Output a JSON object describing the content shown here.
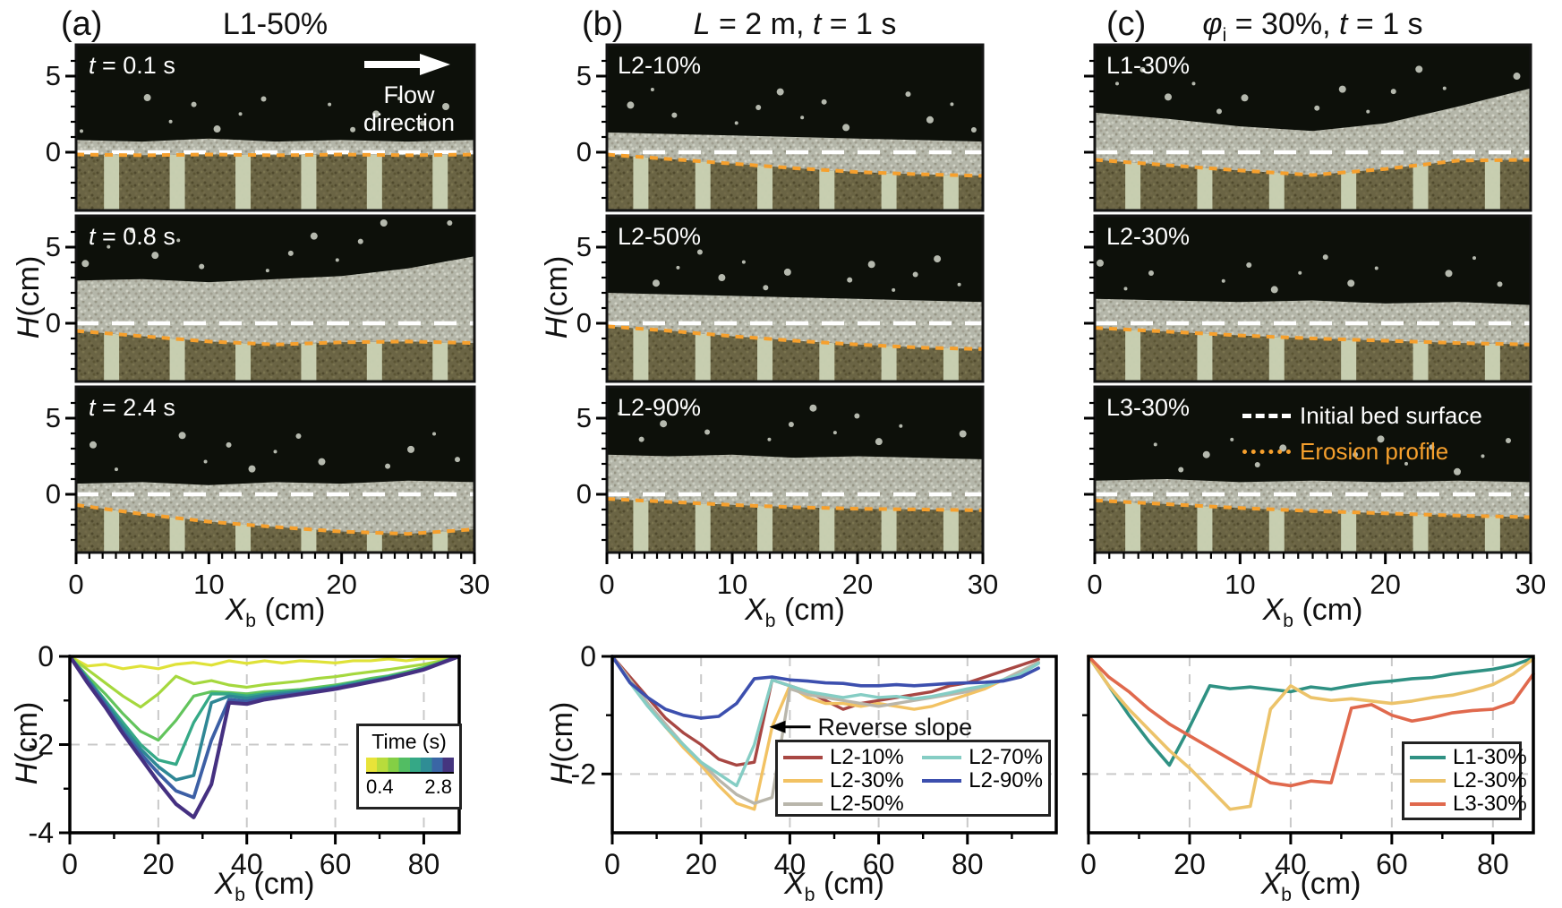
{
  "labels": {
    "x_base": "X",
    "x_sub": "b",
    "x_unit": " (cm)",
    "y_base": "H",
    "y_unit": " (cm)"
  },
  "headers": {
    "a": {
      "tag": "(a)",
      "title": "L1-50%"
    },
    "b": {
      "tag": "(b)",
      "l": "L",
      "mid": " = 2 m, ",
      "t": "t",
      "end": " = 1 s"
    },
    "c": {
      "tag": "(c)",
      "phi": "φ",
      "phi_sub": "i",
      "mid": " = 30%, ",
      "t": "t",
      "end": " = 1 s"
    }
  },
  "photo_panels": {
    "flow_direction_label": "Flow direction",
    "bed_legend": {
      "initial": "Initial bed surface",
      "erosion": "Erosion profile",
      "initial_color": "#ffffff",
      "erosion_color": "#f6a02d"
    },
    "xtick_labels": [
      "0",
      "10",
      "20",
      "30"
    ],
    "columns": [
      {
        "id": "a",
        "ytick_labels": [
          "5",
          "0"
        ],
        "panels": [
          {
            "label_i": "t",
            "label": " = 0.1 s",
            "surface": [
              0.8,
              0.7,
              0.9,
              0.7,
              0.8,
              0.7,
              0.8
            ],
            "erosion": [
              -0.15,
              -0.2,
              -0.15,
              -0.2,
              -0.15,
              -0.2,
              -0.15
            ]
          },
          {
            "label_i": "t",
            "label": " = 0.8 s",
            "surface": [
              2.8,
              2.9,
              2.7,
              2.9,
              3.1,
              3.6,
              4.4
            ],
            "erosion": [
              -0.5,
              -0.85,
              -1.2,
              -1.4,
              -1.25,
              -1.2,
              -1.3
            ]
          },
          {
            "label_i": "t",
            "label": " = 2.4 s",
            "surface": [
              0.7,
              0.8,
              0.6,
              0.8,
              0.7,
              0.9,
              0.8
            ],
            "erosion": [
              -0.7,
              -1.3,
              -1.8,
              -2.15,
              -2.45,
              -2.6,
              -2.3
            ]
          }
        ]
      },
      {
        "id": "b",
        "ytick_labels": [
          "5",
          "0"
        ],
        "panels": [
          {
            "label_i": "",
            "label": "L2-10%",
            "surface": [
              1.3,
              1.2,
              1.1,
              1.0,
              0.9,
              0.8,
              0.7
            ],
            "erosion": [
              -0.15,
              -0.45,
              -0.75,
              -1.05,
              -1.3,
              -1.45,
              -1.55
            ]
          },
          {
            "label_i": "",
            "label": "L2-50%",
            "surface": [
              2.0,
              1.9,
              1.8,
              1.7,
              1.6,
              1.5,
              1.4
            ],
            "erosion": [
              -0.2,
              -0.5,
              -0.85,
              -1.15,
              -1.4,
              -1.6,
              -1.7
            ]
          },
          {
            "label_i": "",
            "label": "L2-90%",
            "surface": [
              2.6,
              2.5,
              2.6,
              2.4,
              2.5,
              2.4,
              2.3
            ],
            "erosion": [
              -0.3,
              -0.5,
              -0.7,
              -0.85,
              -0.95,
              -1.0,
              -1.05
            ]
          }
        ]
      },
      {
        "id": "c",
        "ytick_labels": [],
        "panels": [
          {
            "label_i": "",
            "label": "L1-30%",
            "surface": [
              2.6,
              2.2,
              1.7,
              1.4,
              1.9,
              3.0,
              4.2
            ],
            "erosion": [
              -0.5,
              -0.85,
              -1.2,
              -1.5,
              -1.1,
              -0.55,
              -0.5
            ]
          },
          {
            "label_i": "",
            "label": "L2-30%",
            "surface": [
              1.6,
              1.5,
              1.4,
              1.5,
              1.3,
              1.4,
              1.2
            ],
            "erosion": [
              -0.3,
              -0.55,
              -0.8,
              -1.0,
              -1.15,
              -1.3,
              -1.4
            ]
          },
          {
            "label_i": "",
            "label": "L3-30%",
            "surface": [
              0.9,
              1.0,
              0.8,
              0.9,
              0.8,
              0.9,
              0.8
            ],
            "erosion": [
              -0.4,
              -0.65,
              -0.9,
              -1.1,
              -1.25,
              -1.4,
              -1.5
            ]
          }
        ]
      }
    ]
  },
  "chart_data": [
    {
      "type": "line",
      "xlabel": "X_b (cm)",
      "ylabel": "H (cm)",
      "xlim": [
        0,
        88
      ],
      "ylim": [
        -4,
        0
      ],
      "xticks": [
        0,
        20,
        40,
        60,
        80
      ],
      "xtick_labels": [
        "0",
        "20",
        "40",
        "60",
        "80"
      ],
      "yticks": [
        0,
        -2,
        -4
      ],
      "ytick_labels": [
        "0",
        "-2",
        "-4"
      ],
      "ytick_minor": [
        -1,
        -3
      ],
      "grid_x": [
        20,
        40,
        60,
        80
      ],
      "grid_y": [
        -2
      ],
      "legend": {
        "title": "Time (s)",
        "min": "0.4",
        "max": "2.8",
        "colorbar": [
          "#e8e339",
          "#b8dc3c",
          "#84cf45",
          "#52bd63",
          "#35a886",
          "#2f8d95",
          "#3a66a5",
          "#45357f"
        ]
      },
      "x": [
        0,
        4,
        8,
        12,
        16,
        20,
        24,
        28,
        32,
        36,
        40,
        44,
        48,
        52,
        56,
        60,
        64,
        68,
        72,
        76,
        80,
        84,
        88
      ],
      "series": [
        {
          "name": "t = 0.4 s",
          "color": "#dfe238",
          "width": 3.2,
          "y": [
            0,
            -0.22,
            -0.18,
            -0.28,
            -0.22,
            -0.28,
            -0.18,
            -0.14,
            -0.2,
            -0.1,
            -0.16,
            -0.1,
            -0.15,
            -0.1,
            -0.12,
            -0.15,
            -0.1,
            -0.1,
            -0.06,
            -0.1,
            -0.05,
            -0.05,
            0
          ]
        },
        {
          "name": "t = 0.8 s",
          "color": "#a5d83e",
          "width": 3.2,
          "y": [
            0,
            -0.3,
            -0.6,
            -0.9,
            -1.15,
            -0.85,
            -0.45,
            -0.62,
            -0.55,
            -0.65,
            -0.7,
            -0.64,
            -0.6,
            -0.56,
            -0.5,
            -0.46,
            -0.4,
            -0.35,
            -0.3,
            -0.24,
            -0.18,
            -0.1,
            0
          ]
        },
        {
          "name": "t = 1.2 s",
          "color": "#62c45c",
          "width": 3.2,
          "y": [
            0,
            -0.45,
            -0.85,
            -1.3,
            -1.7,
            -1.9,
            -1.45,
            -0.9,
            -0.8,
            -0.82,
            -0.85,
            -0.8,
            -0.78,
            -0.75,
            -0.7,
            -0.65,
            -0.58,
            -0.5,
            -0.44,
            -0.35,
            -0.25,
            -0.12,
            0
          ]
        },
        {
          "name": "t = 1.6 s",
          "color": "#35a987",
          "width": 3.4,
          "y": [
            0,
            -0.5,
            -1.0,
            -1.5,
            -2.0,
            -2.35,
            -2.45,
            -1.5,
            -0.85,
            -0.85,
            -0.9,
            -0.85,
            -0.8,
            -0.78,
            -0.74,
            -0.68,
            -0.6,
            -0.54,
            -0.46,
            -0.38,
            -0.28,
            -0.14,
            0
          ]
        },
        {
          "name": "t = 2.0 s",
          "color": "#2f8795",
          "width": 3.6,
          "y": [
            0,
            -0.52,
            -1.05,
            -1.6,
            -2.1,
            -2.5,
            -2.8,
            -2.7,
            -1.05,
            -0.9,
            -0.95,
            -0.88,
            -0.84,
            -0.8,
            -0.76,
            -0.7,
            -0.63,
            -0.56,
            -0.48,
            -0.4,
            -0.3,
            -0.15,
            0
          ]
        },
        {
          "name": "t = 2.4 s",
          "color": "#3c5fa5",
          "width": 3.8,
          "y": [
            0,
            -0.55,
            -1.1,
            -1.7,
            -2.2,
            -2.65,
            -3.05,
            -3.2,
            -1.9,
            -0.98,
            -1.02,
            -0.94,
            -0.88,
            -0.84,
            -0.78,
            -0.72,
            -0.65,
            -0.58,
            -0.5,
            -0.4,
            -0.3,
            -0.15,
            0
          ]
        },
        {
          "name": "t = 2.8 s",
          "color": "#453081",
          "width": 4.2,
          "y": [
            0,
            -0.6,
            -1.15,
            -1.75,
            -2.3,
            -2.85,
            -3.35,
            -3.65,
            -2.9,
            -1.05,
            -1.08,
            -0.98,
            -0.92,
            -0.86,
            -0.8,
            -0.74,
            -0.66,
            -0.58,
            -0.5,
            -0.4,
            -0.3,
            -0.15,
            0
          ]
        }
      ]
    },
    {
      "type": "line",
      "xlabel": "X_b (cm)",
      "ylabel": "H (cm)",
      "xlim": [
        0,
        100
      ],
      "ylim": [
        -3,
        0
      ],
      "xticks": [
        0,
        20,
        40,
        60,
        80
      ],
      "xtick_labels": [
        "0",
        "20",
        "40",
        "60",
        "80"
      ],
      "yticks": [
        0,
        -2
      ],
      "ytick_labels": [
        "0",
        "-2"
      ],
      "ytick_minor": [
        -1
      ],
      "grid_x": [
        20,
        40,
        60,
        80
      ],
      "grid_y": [
        -2
      ],
      "annotation": {
        "text": "Reverse slope",
        "x": 37,
        "y": -1.2
      },
      "x": [
        0,
        4,
        8,
        12,
        16,
        20,
        24,
        28,
        32,
        36,
        40,
        44,
        48,
        52,
        56,
        60,
        64,
        68,
        72,
        76,
        80,
        84,
        88,
        92,
        96
      ],
      "series": [
        {
          "name": "L2-10%",
          "color": "#a84743",
          "width": 3.4,
          "y": [
            0,
            -0.35,
            -0.7,
            -1.05,
            -1.3,
            -1.5,
            -1.75,
            -1.85,
            -1.8,
            -0.4,
            -0.5,
            -0.6,
            -0.75,
            -0.9,
            -0.8,
            -0.75,
            -0.7,
            -0.65,
            -0.6,
            -0.5,
            -0.45,
            -0.35,
            -0.25,
            -0.15,
            -0.05
          ]
        },
        {
          "name": "L2-30%",
          "color": "#f2c263",
          "width": 3.4,
          "y": [
            0,
            -0.4,
            -0.8,
            -1.2,
            -1.55,
            -1.85,
            -2.2,
            -2.5,
            -2.6,
            -1.2,
            -0.5,
            -0.7,
            -0.8,
            -0.8,
            -0.85,
            -0.8,
            -0.85,
            -0.9,
            -0.85,
            -0.75,
            -0.65,
            -0.55,
            -0.4,
            -0.25,
            -0.1
          ]
        },
        {
          "name": "L2-50%",
          "color": "#b9b6ab",
          "width": 3.4,
          "y": [
            0,
            -0.4,
            -0.8,
            -1.15,
            -1.5,
            -1.8,
            -2.1,
            -2.35,
            -2.5,
            -2.4,
            -0.55,
            -0.65,
            -0.7,
            -0.75,
            -0.8,
            -0.85,
            -0.8,
            -0.75,
            -0.7,
            -0.65,
            -0.6,
            -0.5,
            -0.4,
            -0.25,
            -0.1
          ]
        },
        {
          "name": "L2-70%",
          "color": "#85cdc4",
          "width": 3.4,
          "y": [
            0,
            -0.45,
            -0.85,
            -1.2,
            -1.5,
            -1.8,
            -2.0,
            -2.2,
            -1.5,
            -0.4,
            -0.5,
            -0.6,
            -0.65,
            -0.7,
            -0.65,
            -0.7,
            -0.68,
            -0.72,
            -0.68,
            -0.62,
            -0.55,
            -0.5,
            -0.4,
            -0.3,
            -0.12
          ]
        },
        {
          "name": "L2-90%",
          "color": "#3c4fae",
          "width": 3.6,
          "y": [
            0,
            -0.45,
            -0.7,
            -0.9,
            -1.0,
            -1.05,
            -1.02,
            -0.8,
            -0.38,
            -0.35,
            -0.4,
            -0.42,
            -0.45,
            -0.46,
            -0.5,
            -0.5,
            -0.48,
            -0.5,
            -0.48,
            -0.46,
            -0.45,
            -0.44,
            -0.42,
            -0.35,
            -0.2
          ]
        }
      ]
    },
    {
      "type": "line",
      "xlabel": "X_b (cm)",
      "ylabel": "",
      "xlim": [
        0,
        88
      ],
      "ylim": [
        -3,
        0
      ],
      "xticks": [
        0,
        20,
        40,
        60,
        80
      ],
      "xtick_labels": [
        "0",
        "20",
        "40",
        "60",
        "80"
      ],
      "yticks": [],
      "ytick_labels": [],
      "ytick_minor": [
        -1,
        -2
      ],
      "grid_x": [
        20,
        40,
        60,
        80
      ],
      "grid_y": [
        -2
      ],
      "x": [
        0,
        4,
        8,
        12,
        16,
        20,
        24,
        28,
        32,
        36,
        40,
        44,
        48,
        52,
        56,
        60,
        64,
        68,
        72,
        76,
        80,
        84,
        88
      ],
      "series": [
        {
          "name": "L1-30%",
          "color": "#2f9183",
          "width": 3.6,
          "y": [
            0,
            -0.5,
            -1.0,
            -1.45,
            -1.85,
            -1.2,
            -0.5,
            -0.55,
            -0.52,
            -0.56,
            -0.6,
            -0.52,
            -0.56,
            -0.5,
            -0.45,
            -0.42,
            -0.38,
            -0.36,
            -0.3,
            -0.26,
            -0.22,
            -0.15,
            -0.03
          ]
        },
        {
          "name": "L2-30%",
          "color": "#ecc36a",
          "width": 3.6,
          "y": [
            0,
            -0.5,
            -0.9,
            -1.25,
            -1.6,
            -1.9,
            -2.25,
            -2.6,
            -2.55,
            -0.9,
            -0.5,
            -0.7,
            -0.75,
            -0.72,
            -0.76,
            -0.8,
            -0.76,
            -0.7,
            -0.66,
            -0.58,
            -0.48,
            -0.3,
            -0.04
          ]
        },
        {
          "name": "L3-30%",
          "color": "#e0694d",
          "width": 3.6,
          "y": [
            0,
            -0.35,
            -0.6,
            -0.9,
            -1.15,
            -1.35,
            -1.55,
            -1.75,
            -1.95,
            -2.15,
            -2.2,
            -2.12,
            -2.15,
            -0.88,
            -0.82,
            -1.0,
            -1.1,
            -1.04,
            -0.96,
            -0.92,
            -0.9,
            -0.78,
            -0.3
          ]
        }
      ]
    }
  ]
}
